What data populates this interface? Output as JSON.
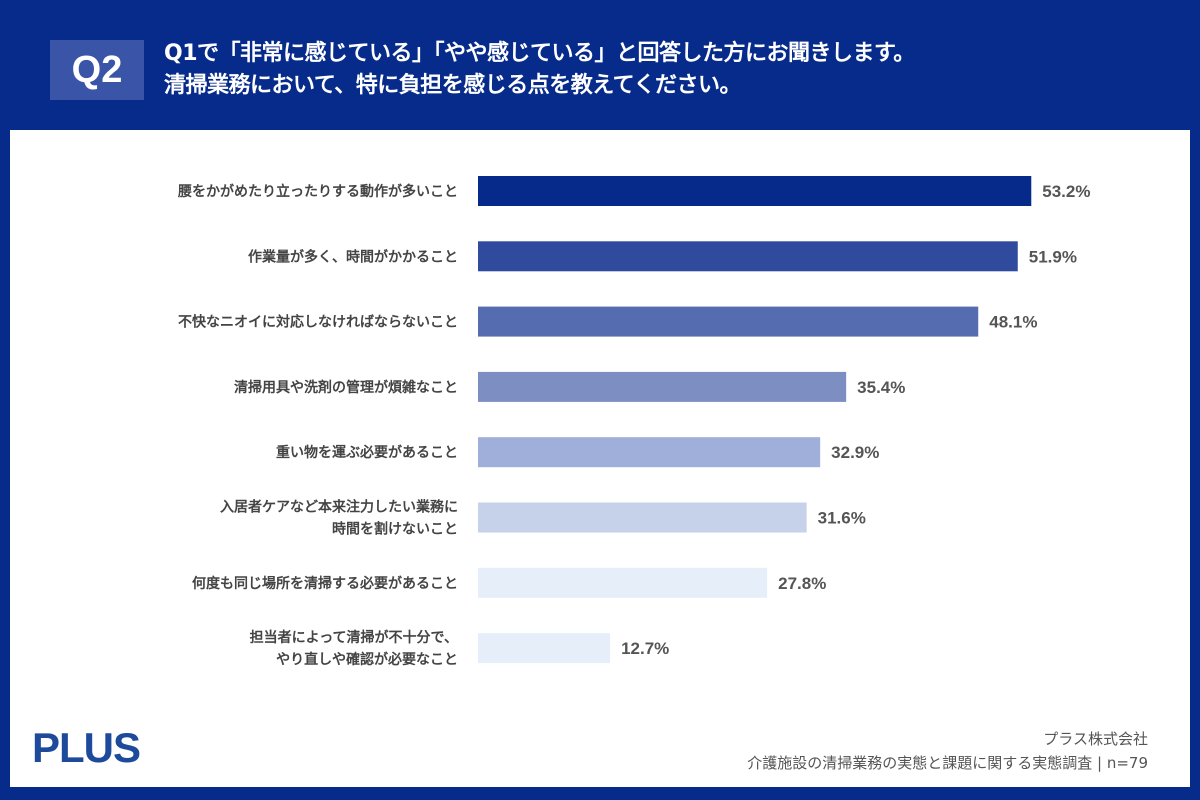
{
  "header": {
    "badge": "Q2",
    "title_line1": "Q1で「非常に感じている」「やや感じている」と回答した方にお聞きします。",
    "title_line2": "清掃業務において、特に負担を感じる点を教えてください。"
  },
  "footer": {
    "logo": "PLUS",
    "company": "プラス株式会社",
    "survey": "介護施設の清掃業務の実態と課題に関する実態調査 | n=79"
  },
  "chart_data": {
    "type": "bar",
    "orientation": "horizontal",
    "categories": [
      [
        "腰をかがめたり立ったりする動作が多いこと"
      ],
      [
        "作業量が多く、時間がかかること"
      ],
      [
        "不快なニオイに対応しなければならないこと"
      ],
      [
        "清掃用具や洗剤の管理が煩雑なこと"
      ],
      [
        "重い物を運ぶ必要があること"
      ],
      [
        "入居者ケアなど本来注力したい業務に",
        "時間を割けないこと"
      ],
      [
        "何度も同じ場所を清掃する必要があること"
      ],
      [
        "担当者によって清掃が不十分で、",
        "やり直しや確認が必要なこと"
      ]
    ],
    "values": [
      53.2,
      51.9,
      48.1,
      35.4,
      32.9,
      31.6,
      27.8,
      12.7
    ],
    "data_labels": [
      "53.2%",
      "51.9%",
      "48.1%",
      "35.4%",
      "32.9%",
      "31.6%",
      "27.8%",
      "12.7%"
    ],
    "colors": [
      "#052a8a",
      "#304b9e",
      "#556db0",
      "#7d8fc2",
      "#a0afd9",
      "#c6d1ea",
      "#e6eef9",
      "#e6eef9"
    ],
    "unit": "%",
    "grid": false,
    "legend": "none"
  }
}
